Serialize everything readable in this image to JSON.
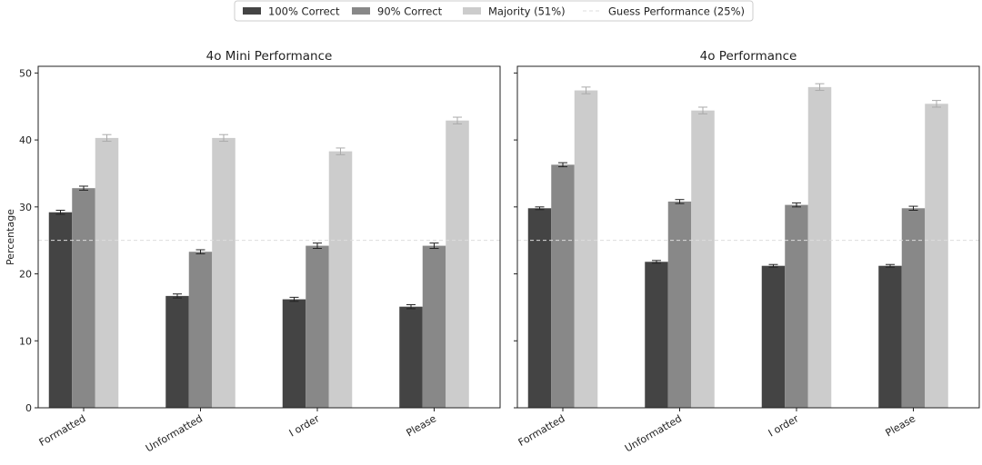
{
  "legend": [
    {
      "label": "100% Correct",
      "kind": "patch",
      "color": "#444444"
    },
    {
      "label": "90% Correct",
      "kind": "patch",
      "color": "#888888"
    },
    {
      "label": "Majority (51%)",
      "kind": "patch",
      "color": "#cccccc"
    },
    {
      "label": "Guess Performance (25%)",
      "kind": "line",
      "color": "#dddddd"
    }
  ],
  "chart_data": [
    {
      "type": "bar",
      "title": "4o Mini Performance",
      "ylabel": "Percentage",
      "ylim": [
        0,
        51
      ],
      "yticks": [
        0,
        10,
        20,
        30,
        40,
        50
      ],
      "categories": [
        "Formatted",
        "Unformatted",
        "I order",
        "Please"
      ],
      "series": [
        {
          "name": "100% Correct",
          "color": "#444444",
          "values": [
            29.2,
            16.7,
            16.2,
            15.1
          ],
          "errors": [
            0.3,
            0.3,
            0.3,
            0.3
          ]
        },
        {
          "name": "90% Correct",
          "color": "#888888",
          "values": [
            32.8,
            23.3,
            24.2,
            24.2
          ],
          "errors": [
            0.3,
            0.3,
            0.4,
            0.4
          ]
        },
        {
          "name": "Majority (51%)",
          "color": "#cccccc",
          "values": [
            40.3,
            40.3,
            38.3,
            42.9
          ],
          "errors": [
            0.5,
            0.5,
            0.5,
            0.5
          ]
        }
      ],
      "reference_line": {
        "label": "Guess Performance (25%)",
        "value": 25
      },
      "grid": false
    },
    {
      "type": "bar",
      "title": "4o Performance",
      "ylabel": "",
      "ylim": [
        0,
        51
      ],
      "yticks": [
        0,
        10,
        20,
        30,
        40,
        50
      ],
      "categories": [
        "Formatted",
        "Unformatted",
        "I order",
        "Please"
      ],
      "series": [
        {
          "name": "100% Correct",
          "color": "#444444",
          "values": [
            29.8,
            21.8,
            21.2,
            21.2
          ],
          "errors": [
            0.2,
            0.2,
            0.2,
            0.2
          ]
        },
        {
          "name": "90% Correct",
          "color": "#888888",
          "values": [
            36.3,
            30.8,
            30.3,
            29.8
          ],
          "errors": [
            0.3,
            0.3,
            0.3,
            0.3
          ]
        },
        {
          "name": "Majority (51%)",
          "color": "#cccccc",
          "values": [
            47.4,
            44.4,
            47.9,
            45.4
          ],
          "errors": [
            0.5,
            0.5,
            0.5,
            0.5
          ]
        }
      ],
      "reference_line": {
        "label": "Guess Performance (25%)",
        "value": 25
      },
      "grid": false
    }
  ]
}
